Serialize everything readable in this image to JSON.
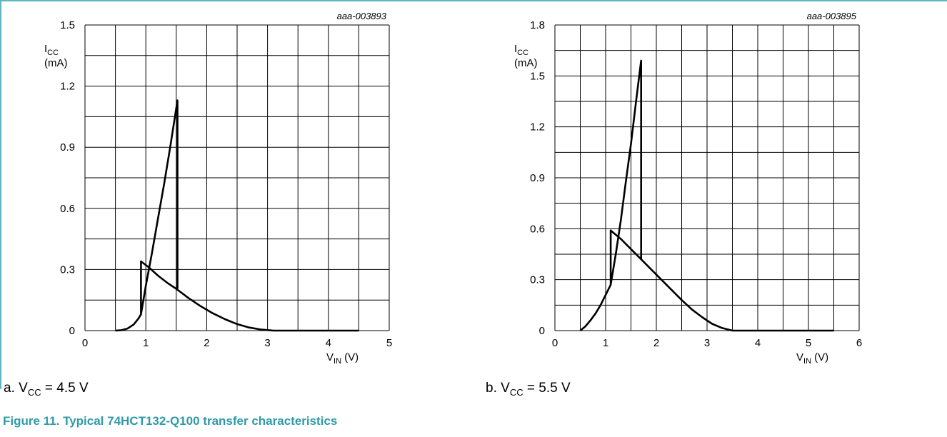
{
  "chart_data": [
    {
      "type": "line",
      "ref": "aaa-003893",
      "ylabel": {
        "main": "I",
        "sub": "CC",
        "unit": "(mA)"
      },
      "xlabel": {
        "main": "V",
        "sub": "IN",
        "unit": "(V)"
      },
      "xlim": [
        0,
        5
      ],
      "ylim": [
        0,
        1.5
      ],
      "xticks": [
        "0",
        "1",
        "2",
        "3",
        "4",
        "5"
      ],
      "yticks": [
        "0",
        "0.3",
        "0.6",
        "0.9",
        "1.2",
        "1.5"
      ],
      "grid": true,
      "series": [
        {
          "points": [
            [
              0.5,
              0
            ],
            [
              0.6,
              0.002
            ],
            [
              0.7,
              0.01
            ],
            [
              0.8,
              0.03
            ],
            [
              0.88,
              0.06
            ],
            [
              0.92,
              0.08
            ],
            [
              0.92,
              0.34
            ],
            [
              1.05,
              0.31
            ],
            [
              1.2,
              0.27
            ],
            [
              1.35,
              0.235
            ],
            [
              1.5,
              0.205
            ],
            [
              1.7,
              0.16
            ],
            [
              1.9,
              0.12
            ],
            [
              2.1,
              0.085
            ],
            [
              2.3,
              0.056
            ],
            [
              2.5,
              0.032
            ],
            [
              2.7,
              0.015
            ],
            [
              2.9,
              0.005
            ],
            [
              3.1,
              0.0
            ],
            [
              3.5,
              0
            ],
            [
              4.0,
              0
            ],
            [
              4.5,
              0
            ]
          ]
        },
        {
          "points": [
            [
              0.92,
              0.08
            ],
            [
              1.0,
              0.22
            ],
            [
              1.1,
              0.38
            ],
            [
              1.2,
              0.55
            ],
            [
              1.3,
              0.72
            ],
            [
              1.4,
              0.9
            ],
            [
              1.52,
              1.13
            ],
            [
              1.52,
              0.205
            ]
          ]
        }
      ]
    },
    {
      "type": "line",
      "ref": "aaa-003895",
      "ylabel": {
        "main": "I",
        "sub": "CC",
        "unit": "(mA)"
      },
      "xlabel": {
        "main": "V",
        "sub": "IN",
        "unit": "(V)"
      },
      "xlim": [
        0,
        6
      ],
      "ylim": [
        0,
        1.8
      ],
      "xticks": [
        "0",
        "1",
        "2",
        "3",
        "4",
        "5",
        "6"
      ],
      "yticks": [
        "0",
        "0.3",
        "0.6",
        "0.9",
        "1.2",
        "1.5",
        "1.8"
      ],
      "grid": true,
      "series": [
        {
          "points": [
            [
              0.5,
              0
            ],
            [
              0.6,
              0.025
            ],
            [
              0.7,
              0.06
            ],
            [
              0.8,
              0.1
            ],
            [
              0.9,
              0.15
            ],
            [
              1.0,
              0.21
            ],
            [
              1.1,
              0.27
            ],
            [
              1.1,
              0.59
            ],
            [
              1.3,
              0.54
            ],
            [
              1.5,
              0.48
            ],
            [
              1.7,
              0.42
            ],
            [
              1.9,
              0.36
            ],
            [
              2.1,
              0.3
            ],
            [
              2.3,
              0.24
            ],
            [
              2.5,
              0.18
            ],
            [
              2.7,
              0.125
            ],
            [
              2.9,
              0.08
            ],
            [
              3.1,
              0.04
            ],
            [
              3.3,
              0.015
            ],
            [
              3.5,
              0
            ],
            [
              4,
              0
            ],
            [
              5,
              0
            ],
            [
              5.5,
              0
            ]
          ]
        },
        {
          "points": [
            [
              1.1,
              0.27
            ],
            [
              1.2,
              0.45
            ],
            [
              1.3,
              0.65
            ],
            [
              1.4,
              0.88
            ],
            [
              1.5,
              1.1
            ],
            [
              1.6,
              1.35
            ],
            [
              1.7,
              1.59
            ],
            [
              1.7,
              0.42
            ]
          ]
        }
      ]
    }
  ],
  "captions": {
    "a": {
      "prefix": "a. V",
      "sub": "CC",
      "suffix": " = 4.5 V"
    },
    "b": {
      "prefix": "b. V",
      "sub": "CC",
      "suffix": " = 5.5 V"
    }
  },
  "figure_title": "Figure 11.  Typical 74HCT132-Q100 transfer characteristics"
}
